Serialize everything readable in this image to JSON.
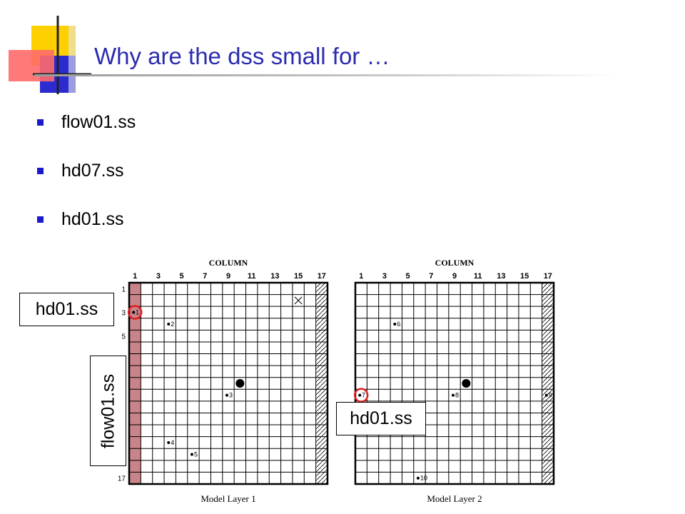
{
  "slide": {
    "title": "Why are the dss small for …",
    "bullets": [
      "flow01.ss",
      "hd07.ss",
      "hd01.ss"
    ],
    "callouts": {
      "left_top": "hd01.ss",
      "left_vertical": "flow01.ss",
      "right": "hd01.ss"
    }
  },
  "diagram": {
    "grid_size": 17,
    "column_header": "COLUMN",
    "column_ticks": [
      "1",
      "3",
      "5",
      "7",
      "9",
      "11",
      "13",
      "15",
      "17"
    ],
    "row_ticks": [
      "1",
      "3",
      "5",
      "17"
    ],
    "colors": {
      "flow_column": "#c9838a",
      "highlight_circle": "#e02020"
    },
    "layers": [
      {
        "caption": "Model Layer 1",
        "shaded_column": 1,
        "hatched_column": 17,
        "show_row_ticks": true,
        "marker_x": {
          "row": 2,
          "col": 15
        },
        "pumping_well": {
          "row": 9,
          "col": 10
        },
        "observation_wells": [
          {
            "label": "1",
            "row": 3,
            "col": 1
          },
          {
            "label": "2",
            "row": 4,
            "col": 4
          },
          {
            "label": "3",
            "row": 10,
            "col": 9
          },
          {
            "label": "4",
            "row": 14,
            "col": 4
          },
          {
            "label": "5",
            "row": 15,
            "col": 6
          }
        ],
        "highlighted_wells": [
          "1"
        ]
      },
      {
        "caption": "Model Layer 2",
        "shaded_column": null,
        "hatched_column": 17,
        "show_row_ticks": false,
        "marker_x": null,
        "pumping_well": {
          "row": 9,
          "col": 10
        },
        "observation_wells": [
          {
            "label": "6",
            "row": 4,
            "col": 4
          },
          {
            "label": "7",
            "row": 10,
            "col": 1
          },
          {
            "label": "8",
            "row": 10,
            "col": 9
          },
          {
            "label": "9",
            "row": 10,
            "col": 17
          },
          {
            "label": "10",
            "row": 17,
            "col": 6
          }
        ],
        "highlighted_wells": [
          "7"
        ]
      }
    ]
  }
}
